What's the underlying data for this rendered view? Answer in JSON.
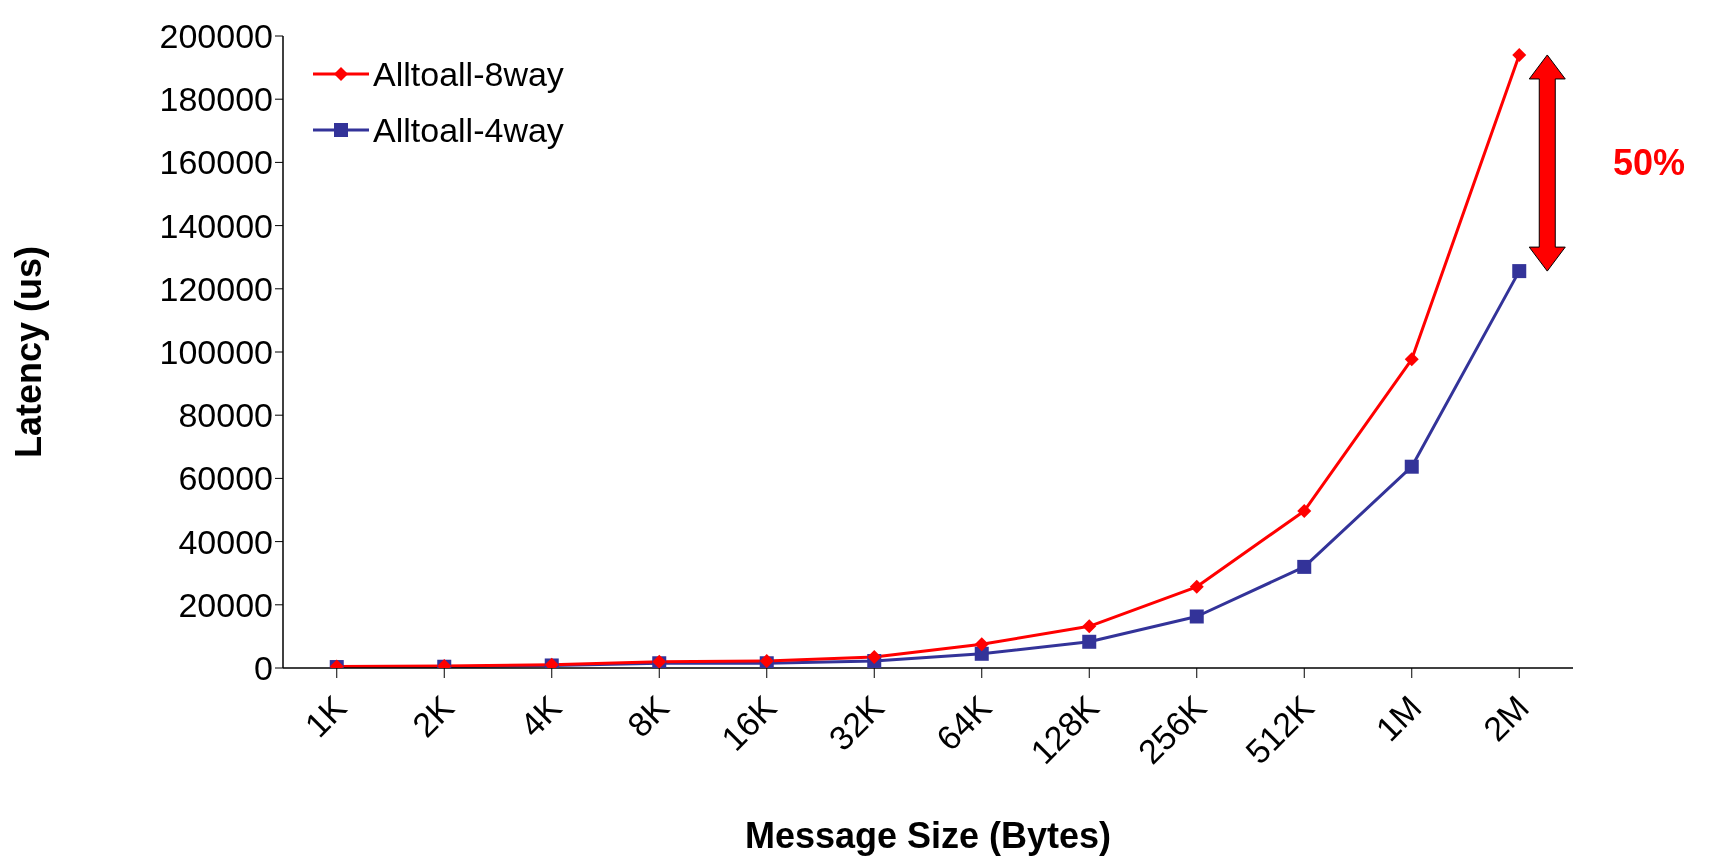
{
  "chart_data": {
    "type": "line",
    "xlabel": "Message Size (Bytes)",
    "ylabel": "Latency (us)",
    "categories": [
      "1K",
      "2K",
      "4K",
      "8K",
      "16K",
      "32K",
      "64K",
      "128K",
      "256K",
      "512K",
      "1M",
      "2M"
    ],
    "series": [
      {
        "name": "Alltoall-8way",
        "color": "#ff0000",
        "marker": "diamond",
        "values": [
          500,
          600,
          1000,
          2000,
          2200,
          3500,
          7500,
          13200,
          25700,
          49700,
          97700,
          194000
        ]
      },
      {
        "name": "Alltoall-4way",
        "color": "#333399",
        "marker": "square",
        "values": [
          300,
          400,
          800,
          1500,
          1500,
          2200,
          4500,
          8300,
          16300,
          32000,
          63700,
          125600
        ]
      }
    ],
    "ylim": [
      0,
      200000
    ],
    "yticks": [
      0,
      20000,
      40000,
      60000,
      80000,
      100000,
      120000,
      140000,
      160000,
      180000,
      200000
    ],
    "grid": false,
    "legend": "top left",
    "annotations": [
      "50%"
    ]
  }
}
